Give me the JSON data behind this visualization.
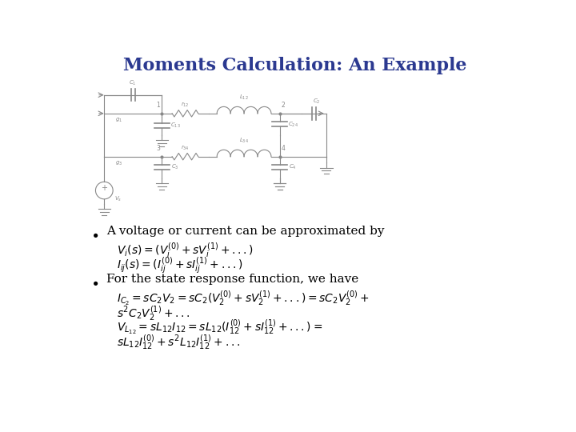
{
  "title": "Moments Calculation: An Example",
  "title_color": "#2B3990",
  "title_fontsize": 16,
  "bg_color": "#FFFFFF",
  "bullet1": "A voltage or current can be approximated by",
  "bullet2": "For the state response function, we have",
  "eq1a": "$V_i(s) = (V_i^{(0)} + sV_i^{(1)} + ...)$",
  "eq1b": "$I_{ij}(s) = (I_{ij}^{(0)} + sI_{ij}^{(1)} + ...)$",
  "eq2a": "$I_{C_2} = sC_2V_2 = sC_2(V_2^{(0)}+sV_2^{(1)}+...) = sC_2V_2^{(0)}+$",
  "eq2b": "$s^2C_2V_2^{(1)} + ...$",
  "eq2c": "$V_{L_{12}} = sL_{12}I_{12} = sL_{12}(I_{12}^{(0)} + sI_{12}^{(1)} + ...) =$",
  "eq2d": "$sL_{12}I_{12}^{(0)} + s^2L_{12}I_{12}^{(1)} + ...$",
  "text_color": "#000000",
  "bullet_color": "#000000",
  "eq_color": "#000000",
  "circuit_color": "#888888",
  "fs_bullet": 11,
  "fs_eq": 10,
  "fs_circuit": 5
}
